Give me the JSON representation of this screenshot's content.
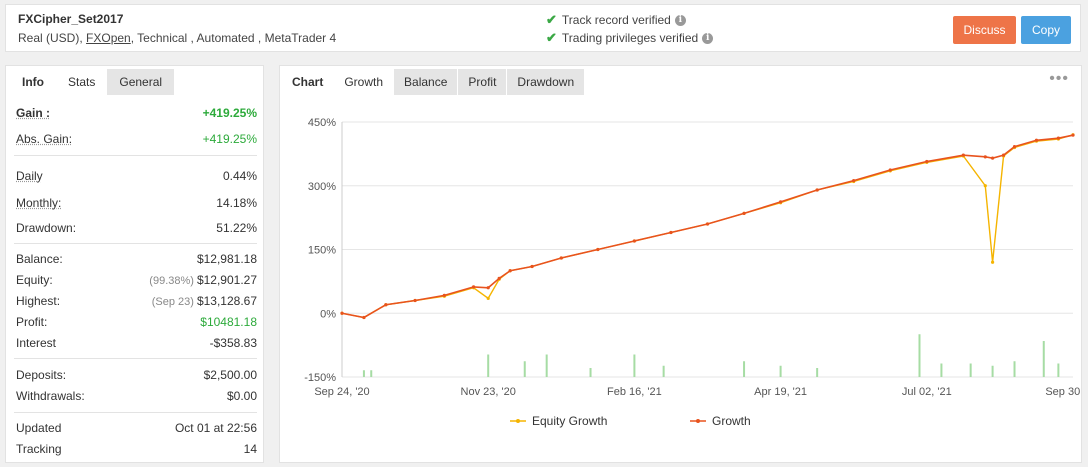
{
  "header": {
    "system_name": "FXCipher_Set2017",
    "sub_prefix": "Real (USD),",
    "broker": "FXOpen",
    "sub_suffix": ", Technical , Automated , MetaTrader 4",
    "verif_1": "Track record verified",
    "verif_2": "Trading privileges verified",
    "discuss_label": "Discuss",
    "copy_label": "Copy"
  },
  "left_tabs": [
    "Info",
    "Stats",
    "General"
  ],
  "stats": {
    "gain": {
      "label": "Gain :",
      "value": "+419.25%"
    },
    "abs_gain": {
      "label": "Abs. Gain:",
      "value": "+419.25%"
    },
    "daily": {
      "label": "Daily",
      "value": "0.44%"
    },
    "monthly": {
      "label": "Monthly:",
      "value": "14.18%"
    },
    "drawdown": {
      "label": "Drawdown:",
      "value": "51.22%"
    },
    "balance": {
      "label": "Balance:",
      "value": "$12,981.18"
    },
    "equity": {
      "label": "Equity:",
      "sub": "(99.38%)",
      "value": "$12,901.27"
    },
    "highest": {
      "label": "Highest:",
      "sub": "(Sep 23)",
      "value": "$13,128.67"
    },
    "profit": {
      "label": "Profit:",
      "value": "$10481.18"
    },
    "interest": {
      "label": "Interest",
      "value": "-$358.83"
    },
    "deposits": {
      "label": "Deposits:",
      "value": "$2,500.00"
    },
    "withdrawals": {
      "label": "Withdrawals:",
      "value": "$0.00"
    },
    "updated": {
      "label": "Updated",
      "value": "Oct 01 at 22:56"
    },
    "tracking": {
      "label": "Tracking",
      "value": "14"
    }
  },
  "chart_tabs": [
    "Chart",
    "Growth",
    "Balance",
    "Profit",
    "Drawdown"
  ],
  "colors": {
    "equity": "#f5b400",
    "growth": "#e8531e",
    "bars": "#a6dca4",
    "grid": "#e6e6e6",
    "green_text": "#2daa3b"
  },
  "chart_data": {
    "type": "line",
    "ylim": [
      -150,
      450
    ],
    "yticks": [
      "450%",
      "300%",
      "150%",
      "0%",
      "-150%"
    ],
    "xticks": [
      "Sep 24, '20",
      "Nov 23, '20",
      "Feb 16, '21",
      "Apr 19, '21",
      "Jul 02, '21",
      "Sep 30, '21"
    ],
    "series": [
      {
        "name": "Equity Growth",
        "x": [
          0,
          0.03,
          0.06,
          0.1,
          0.14,
          0.18,
          0.2,
          0.215,
          0.23,
          0.26,
          0.3,
          0.35,
          0.4,
          0.45,
          0.5,
          0.55,
          0.6,
          0.65,
          0.7,
          0.75,
          0.8,
          0.85,
          0.88,
          0.89,
          0.905,
          0.92,
          0.95,
          0.98,
          1.0
        ],
        "values": [
          0,
          -10,
          20,
          30,
          40,
          60,
          35,
          80,
          100,
          110,
          130,
          150,
          170,
          190,
          210,
          235,
          260,
          290,
          310,
          335,
          355,
          370,
          300,
          120,
          370,
          390,
          405,
          410,
          420
        ]
      },
      {
        "name": "Growth",
        "x": [
          0,
          0.03,
          0.06,
          0.1,
          0.14,
          0.18,
          0.2,
          0.215,
          0.23,
          0.26,
          0.3,
          0.35,
          0.4,
          0.45,
          0.5,
          0.55,
          0.6,
          0.65,
          0.7,
          0.75,
          0.8,
          0.85,
          0.88,
          0.89,
          0.905,
          0.92,
          0.95,
          0.98,
          1.0
        ],
        "values": [
          0,
          -10,
          20,
          30,
          42,
          62,
          60,
          82,
          100,
          110,
          130,
          150,
          170,
          190,
          210,
          235,
          262,
          290,
          312,
          337,
          357,
          372,
          368,
          365,
          372,
          392,
          407,
          412,
          419
        ]
      }
    ],
    "bars": {
      "x": [
        0.03,
        0.04,
        0.2,
        0.25,
        0.28,
        0.34,
        0.4,
        0.44,
        0.55,
        0.6,
        0.65,
        0.79,
        0.82,
        0.86,
        0.89,
        0.92,
        0.96,
        0.98
      ],
      "values": [
        15,
        15,
        50,
        35,
        50,
        20,
        50,
        25,
        35,
        25,
        20,
        95,
        30,
        30,
        25,
        35,
        80,
        30
      ]
    }
  }
}
